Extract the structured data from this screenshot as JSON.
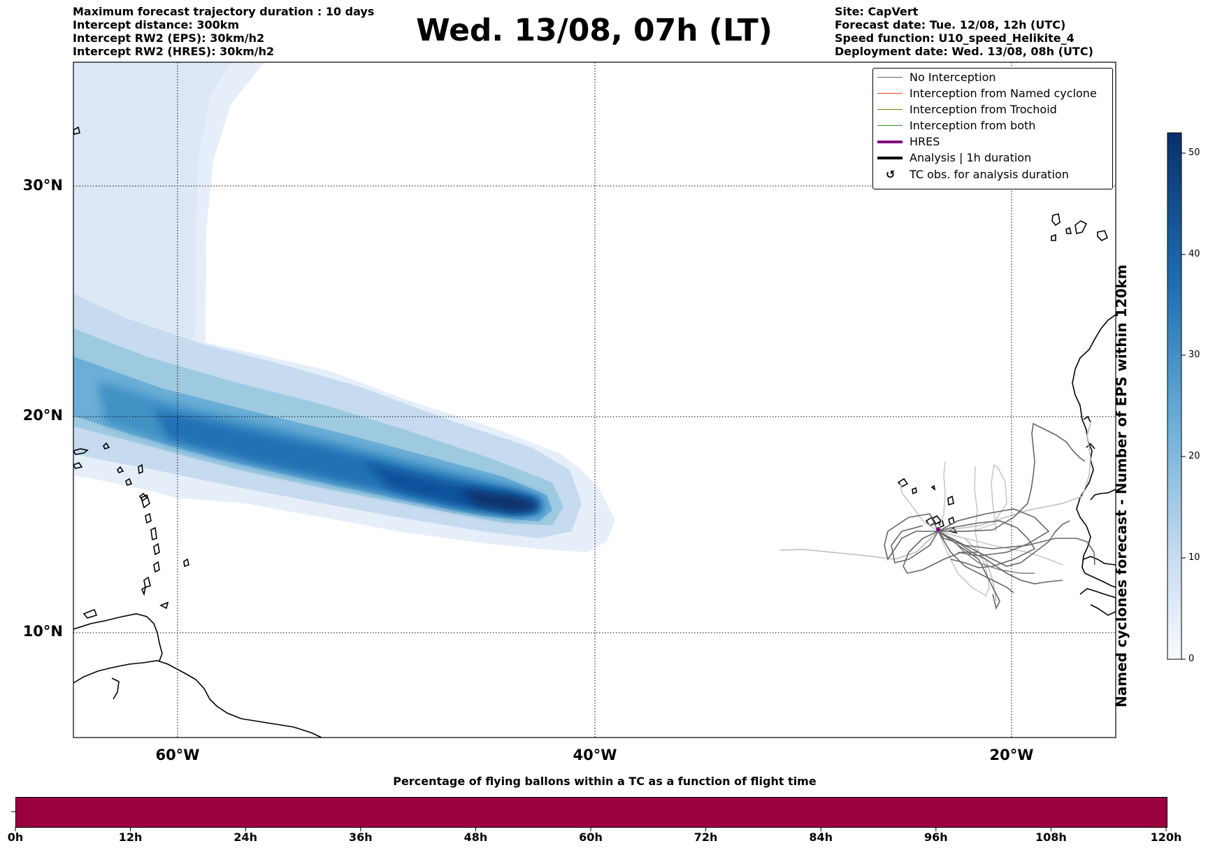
{
  "header_left": [
    "Maximum forecast trajectory duration : 10 days",
    "Intercept distance: 300km",
    "Intercept RW2 (EPS):  30km/h2",
    "Intercept RW2 (HRES): 30km/h2"
  ],
  "title": "Wed. 13/08, 07h (LT)",
  "header_right": [
    "Site: CapVert",
    "Forecast date: Tue. 12/08, 12h (UTC)",
    "Speed function: U10_speed_Helikite_4",
    "Deployment date: Wed. 13/08, 08h (UTC)"
  ],
  "lat_labels": [
    "30°N",
    "20°N",
    "10°N"
  ],
  "lon_labels": [
    "60°W",
    "40°W",
    "20°W"
  ],
  "legend": [
    {
      "label": "No Interception",
      "color": "#666666"
    },
    {
      "label": "Interception from Named cyclone",
      "color": "#e34a1a"
    },
    {
      "label": "Interception from Trochoid",
      "color": "#808000"
    },
    {
      "label": "Interception from both",
      "color": "#2e8b2e"
    },
    {
      "label": "HRES",
      "color": "#800080"
    },
    {
      "label": "Analysis | 1h duration",
      "color": "#000000"
    },
    {
      "label": "TC obs. for analysis duration",
      "color": "#000000",
      "icon": "cyclone-icon"
    }
  ],
  "colorbar": {
    "label": "Named cyclones forecast - Number of EPS within 120km",
    "ticks": [
      "0",
      "10",
      "20",
      "30",
      "40",
      "50"
    ],
    "color_low": "#f7fbff",
    "color_high": "#08306b"
  },
  "percentage_bar": {
    "title": "Percentage of flying ballons within a TC as a function of flight time",
    "ticks": [
      "0h",
      "12h",
      "24h",
      "36h",
      "48h",
      "60h",
      "72h",
      "84h",
      "96h",
      "108h",
      "120h"
    ],
    "fill_color": "#99003d"
  }
}
